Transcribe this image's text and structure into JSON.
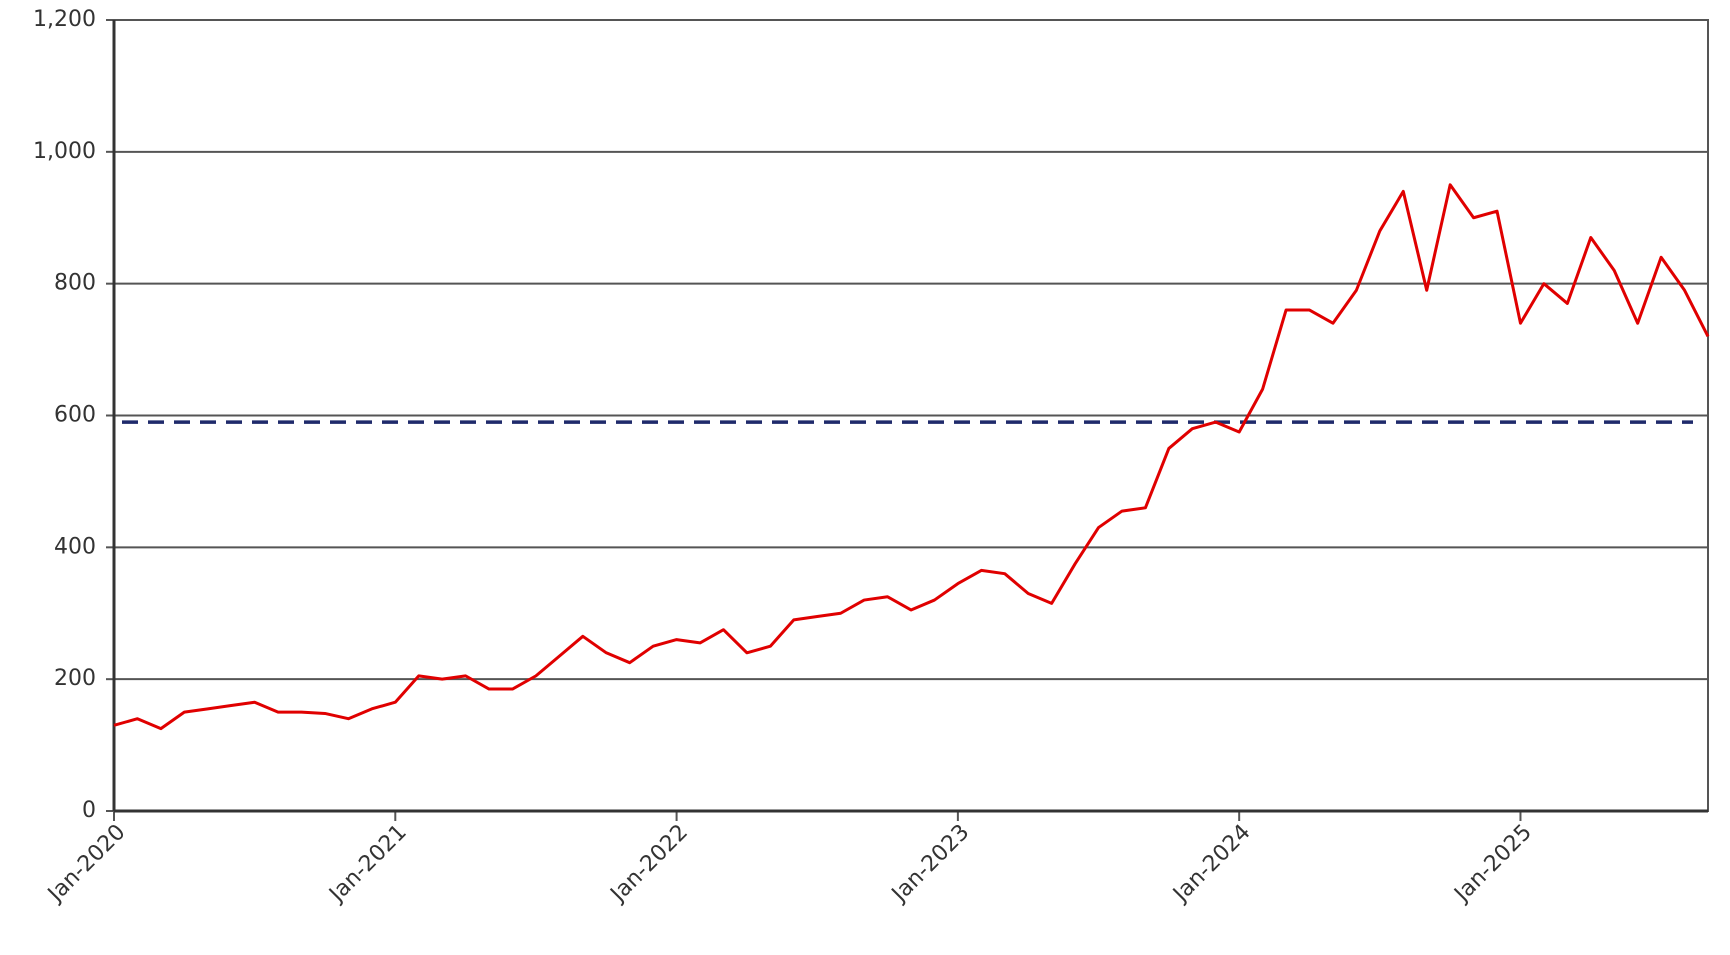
{
  "chart_data": {
    "type": "line",
    "x": [
      "2020-01",
      "2020-02",
      "2020-03",
      "2020-04",
      "2020-05",
      "2020-06",
      "2020-07",
      "2020-08",
      "2020-09",
      "2020-10",
      "2020-11",
      "2020-12",
      "2021-01",
      "2021-02",
      "2021-03",
      "2021-04",
      "2021-05",
      "2021-06",
      "2021-07",
      "2021-08",
      "2021-09",
      "2021-10",
      "2021-11",
      "2021-12",
      "2022-01",
      "2022-02",
      "2022-03",
      "2022-04",
      "2022-05",
      "2022-06",
      "2022-07",
      "2022-08",
      "2022-09",
      "2022-10",
      "2022-11",
      "2022-12",
      "2023-01",
      "2023-02",
      "2023-03",
      "2023-04",
      "2023-05",
      "2023-06",
      "2023-07",
      "2023-08",
      "2023-09",
      "2023-10",
      "2023-11",
      "2023-12",
      "2024-01",
      "2024-02",
      "2024-03",
      "2024-04",
      "2024-05",
      "2024-06",
      "2024-07",
      "2024-08",
      "2024-09",
      "2024-10",
      "2024-11",
      "2024-12",
      "2025-01",
      "2025-02",
      "2025-03",
      "2025-04",
      "2025-05",
      "2025-06",
      "2025-07",
      "2025-08",
      "2025-09"
    ],
    "series": [
      {
        "color": "#e00000",
        "values": [
          130,
          140,
          125,
          150,
          155,
          160,
          165,
          150,
          150,
          148,
          140,
          155,
          165,
          205,
          200,
          205,
          185,
          185,
          205,
          235,
          265,
          240,
          225,
          250,
          260,
          255,
          275,
          240,
          250,
          290,
          295,
          300,
          320,
          325,
          305,
          320,
          345,
          365,
          360,
          330,
          315,
          375,
          430,
          455,
          460,
          550,
          580,
          590,
          575,
          640,
          760,
          760,
          740,
          790,
          880,
          940,
          790,
          950,
          900,
          910,
          740,
          800,
          770,
          870,
          820,
          740,
          840,
          790,
          720
        ]
      }
    ],
    "reference_line": {
      "value": 590,
      "color": "#1f2a6b",
      "style": "dashed"
    },
    "xlim": [
      "2020-01",
      "2025-09"
    ],
    "xticks": [
      {
        "value": "2020-01",
        "label": "Jan-2020"
      },
      {
        "value": "2021-01",
        "label": "Jan-2021"
      },
      {
        "value": "2022-01",
        "label": "Jan-2022"
      },
      {
        "value": "2023-01",
        "label": "Jan-2023"
      },
      {
        "value": "2024-01",
        "label": "Jan-2024"
      },
      {
        "value": "2025-01",
        "label": "Jan-2025"
      }
    ],
    "ylim": [
      0,
      1200
    ],
    "yticks": [
      0,
      200,
      400,
      600,
      800,
      {
        "value": 1000,
        "label": "1,000"
      },
      {
        "value": 1200,
        "label": "1,200"
      }
    ],
    "grid": true
  }
}
